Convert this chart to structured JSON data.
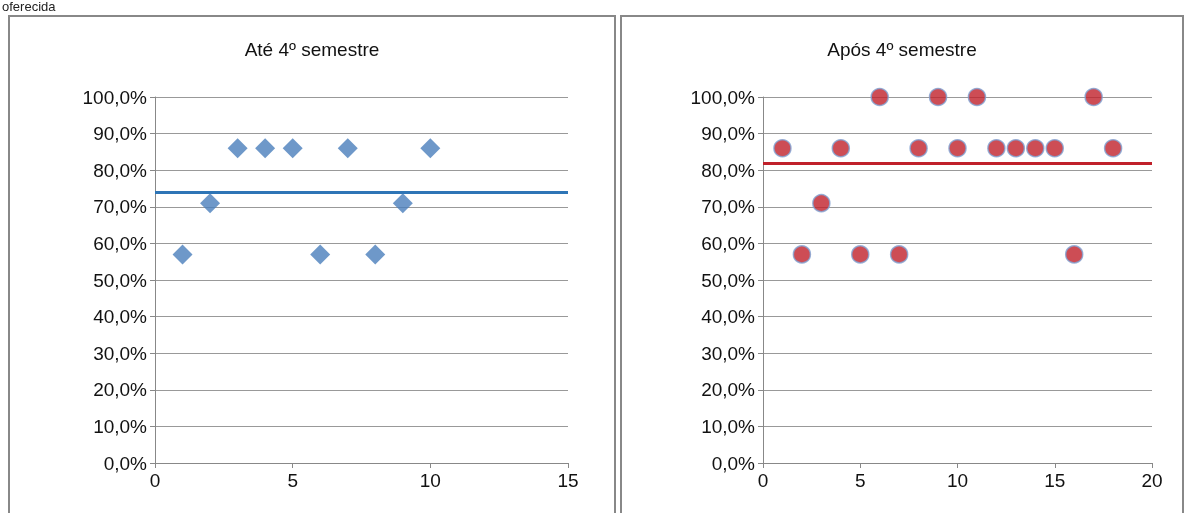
{
  "chart_data": [
    {
      "type": "scatter",
      "title": "Até 4º semestre",
      "annotations": [
        "oferecida"
      ],
      "marker": "diamond",
      "grid": "y",
      "x": [
        1,
        2,
        3,
        4,
        5,
        6,
        7,
        8,
        9,
        10
      ],
      "series": [
        {
          "color": "#4a7ebb",
          "values": [
            57,
            71,
            86,
            86,
            86,
            57,
            86,
            57,
            71,
            86
          ]
        }
      ],
      "ref_lines": [
        {
          "axis": "y",
          "value": 74,
          "color": "#2e75b6"
        }
      ],
      "xlim": [
        0,
        15
      ],
      "xticks": [
        0,
        5,
        10,
        15
      ],
      "ylim": [
        0,
        100
      ],
      "yticks": [
        {
          "value": 0,
          "label": "0,0%"
        },
        {
          "value": 10,
          "label": "10,0%"
        },
        {
          "value": 20,
          "label": "20,0%"
        },
        {
          "value": 30,
          "label": "30,0%"
        },
        {
          "value": 40,
          "label": "40,0%"
        },
        {
          "value": 50,
          "label": "50,0%"
        },
        {
          "value": 60,
          "label": "60,0%"
        },
        {
          "value": 70,
          "label": "70,0%"
        },
        {
          "value": 80,
          "label": "80,0%"
        },
        {
          "value": 90,
          "label": "90,0%"
        },
        {
          "value": 100,
          "label": "100,0%"
        }
      ]
    },
    {
      "type": "scatter",
      "title": "Após 4º semestre",
      "marker": "circle",
      "grid": "y",
      "x": [
        1,
        2,
        3,
        4,
        5,
        6,
        7,
        8,
        9,
        10,
        11,
        12,
        13,
        14,
        15,
        16,
        17,
        18
      ],
      "series": [
        {
          "color": "#c0202a",
          "values": [
            86,
            57,
            71,
            86,
            57,
            100,
            57,
            86,
            100,
            86,
            100,
            86,
            86,
            86,
            86,
            57,
            100,
            86
          ]
        }
      ],
      "ref_lines": [
        {
          "axis": "y",
          "value": 82,
          "color": "#c0202a"
        }
      ],
      "xlim": [
        0,
        20
      ],
      "xticks": [
        0,
        5,
        10,
        15,
        20
      ],
      "ylim": [
        0,
        100
      ],
      "yticks": [
        {
          "value": 0,
          "label": "0,0%"
        },
        {
          "value": 10,
          "label": "10,0%"
        },
        {
          "value": 20,
          "label": "20,0%"
        },
        {
          "value": 30,
          "label": "30,0%"
        },
        {
          "value": 40,
          "label": "40,0%"
        },
        {
          "value": 50,
          "label": "50,0%"
        },
        {
          "value": 60,
          "label": "60,0%"
        },
        {
          "value": 70,
          "label": "70,0%"
        },
        {
          "value": 80,
          "label": "80,0%"
        },
        {
          "value": 90,
          "label": "90,0%"
        },
        {
          "value": 100,
          "label": "100,0%"
        }
      ]
    }
  ]
}
